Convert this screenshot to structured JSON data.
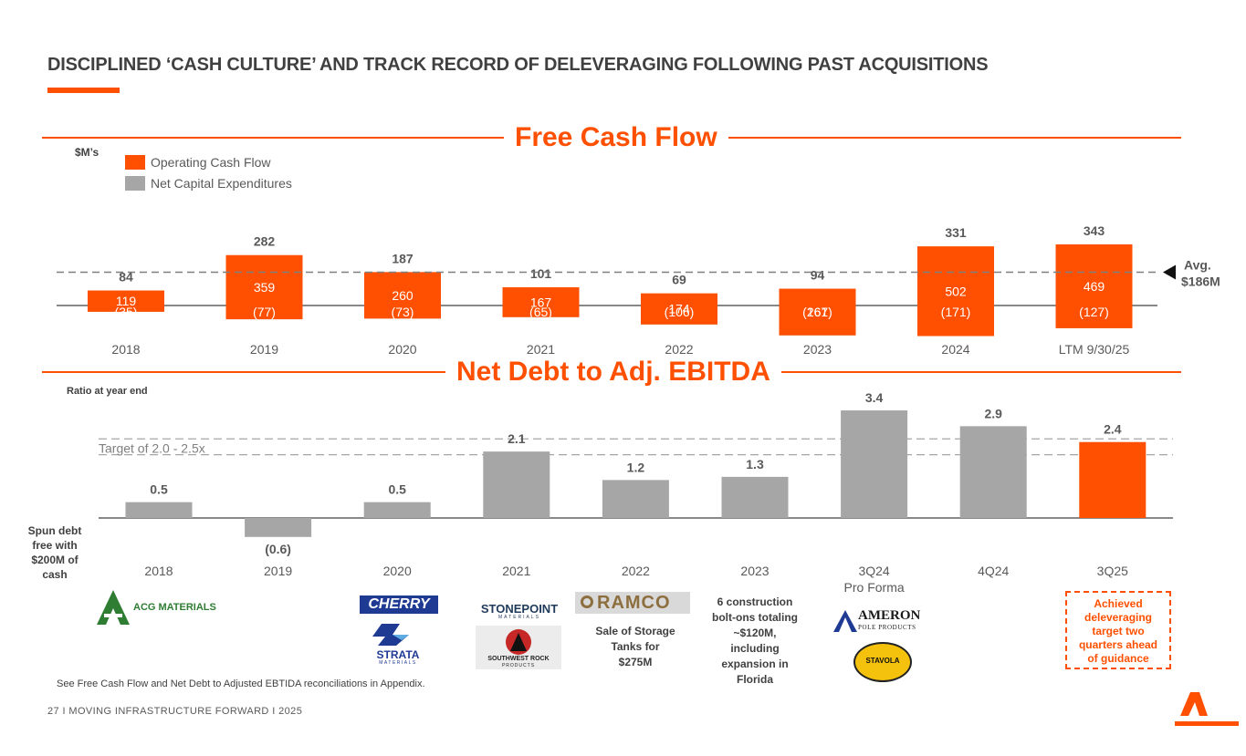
{
  "page": {
    "title": "DISCIPLINED ‘CASH CULTURE’ AND TRACK RECORD OF DELEVERAGING FOLLOWING PAST ACQUISITIONS",
    "footnote": "See Free Cash Flow and Net Debt to Adjusted EBTIDA reconciliations in Appendix.",
    "footer": "27 I   MOVING INFRASTRUCTURE FORWARD   I   2025",
    "accent_color": "#fe5000",
    "gray_color": "#a6a6a6"
  },
  "chart_data": [
    {
      "type": "bar",
      "title": "Free Cash Flow",
      "unit_label": "$M’s",
      "categories": [
        "2018",
        "2019",
        "2020",
        "2021",
        "2022",
        "2023",
        "2024",
        "LTM 9/30/25"
      ],
      "series": [
        {
          "name": "Operating Cash Flow",
          "color": "#fe5000",
          "values": [
            119,
            359,
            260,
            167,
            174,
            261,
            502,
            469
          ]
        },
        {
          "name": "Net Capital Expenditures",
          "color": "#a6a6a6",
          "values": [
            -35,
            -77,
            -73,
            -65,
            -106,
            -167,
            -171,
            -127
          ],
          "labels": [
            "(35)",
            "(77)",
            "(73)",
            "(65)",
            "(106)",
            "(167)",
            "(171)",
            "(127)"
          ]
        }
      ],
      "totals": [
        84,
        282,
        187,
        101,
        69,
        94,
        331,
        343
      ],
      "average": {
        "value": 186,
        "label_line1": "Avg.",
        "label_line2": "$186M"
      },
      "legend": "top-left"
    },
    {
      "type": "bar",
      "title": "Net Debt to Adj. EBITDA",
      "unit_label": "Ratio at year end",
      "categories": [
        "2018",
        "2019",
        "2020",
        "2021",
        "2022",
        "2023",
        "3Q24",
        "4Q24",
        "3Q25"
      ],
      "category_sublabels": [
        "",
        "",
        "",
        "",
        "",
        "",
        "Pro Forma",
        "",
        ""
      ],
      "values": [
        0.5,
        -0.6,
        0.5,
        2.1,
        1.2,
        1.3,
        3.4,
        2.9,
        2.4
      ],
      "value_labels": [
        "0.5",
        "(0.6)",
        "0.5",
        "2.1",
        "1.2",
        "1.3",
        "3.4",
        "2.9",
        "2.4"
      ],
      "highlight_index": 8,
      "target": {
        "low": 2.0,
        "high": 2.5,
        "label": "Target of 2.0 - 2.5x"
      }
    }
  ],
  "annotations": {
    "spun_debt": [
      "Spun debt",
      "free with",
      "$200M of",
      "cash"
    ],
    "storage_sale": [
      "Sale of Storage",
      "Tanks for",
      "$275M"
    ],
    "bolt_ons": [
      "6 construction",
      "bolt-ons totaling",
      "~$120M,",
      "including",
      "expansion in",
      "Florida"
    ],
    "achieved": [
      "Achieved",
      "deleveraging",
      "target two",
      "quarters ahead",
      "of guidance"
    ]
  },
  "logos": {
    "acg": "ACG MATERIALS",
    "cherry": "CHERRY",
    "strata": "STRATA",
    "strata_sub": "MATERIALS",
    "stonepoint": "STONEPOINT",
    "stonepoint_sub": "MATERIALS",
    "southwest": "SOUTHWEST ROCK",
    "southwest_sub": "PRODUCTS",
    "ramco": "RAMCO",
    "ameron": "AMERON",
    "ameron_sub": "POLE PRODUCTS",
    "stavola": "STAVOLA"
  }
}
